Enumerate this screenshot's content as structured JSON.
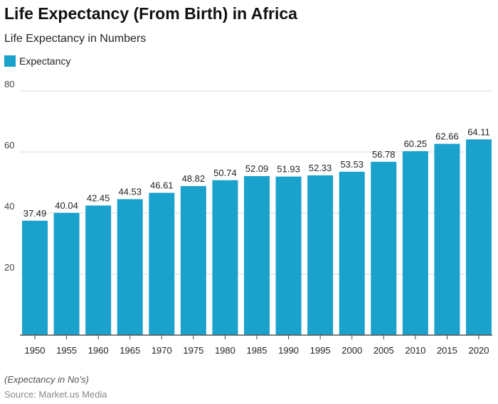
{
  "title": "Life Expectancy (From Birth) in Africa",
  "subtitle": "Life Expectancy in Numbers",
  "footnote": "(Expectancy in No's)",
  "source": "Source: Market.us Media",
  "chart_data": {
    "type": "bar",
    "categories": [
      "1950",
      "1955",
      "1960",
      "1965",
      "1970",
      "1975",
      "1980",
      "1985",
      "1990",
      "1995",
      "2000",
      "2005",
      "2010",
      "2015",
      "2020"
    ],
    "series": [
      {
        "name": "Expectancy",
        "values": [
          37.49,
          40.04,
          42.45,
          44.53,
          46.61,
          48.82,
          50.74,
          52.09,
          51.93,
          52.33,
          53.53,
          56.78,
          60.25,
          62.66,
          64.11
        ],
        "color": "#1aa1cc"
      }
    ],
    "ylim": [
      0,
      80
    ],
    "yticks": [
      20,
      40,
      60,
      80
    ],
    "grid": true,
    "legend": "top-left",
    "data_labels": true
  }
}
